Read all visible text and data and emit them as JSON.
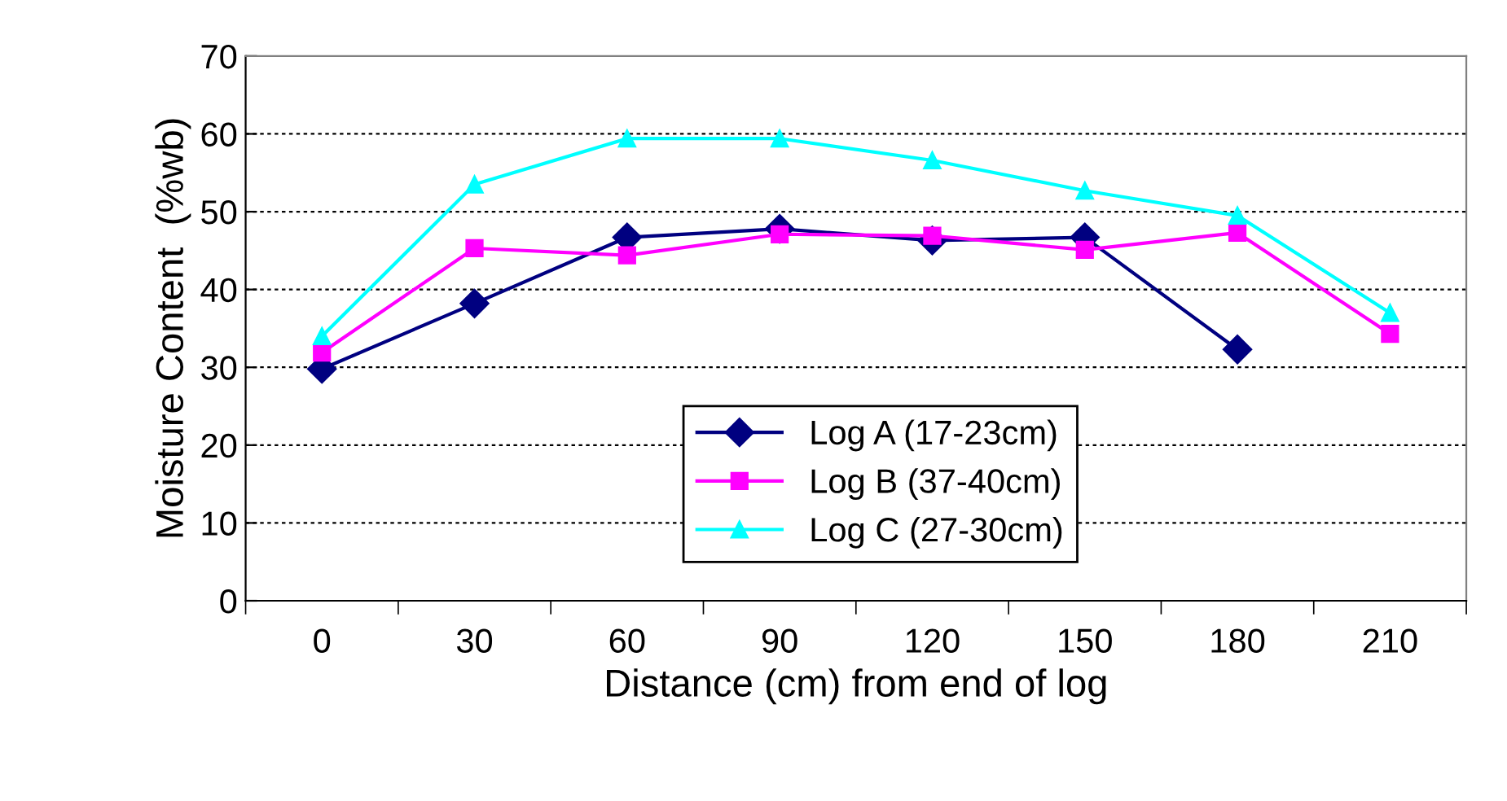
{
  "chart_data": {
    "type": "line",
    "xlabel": "Distance (cm) from end of log",
    "ylabel": "Moisture Content  (%wb)",
    "categories": [
      "0",
      "30",
      "60",
      "90",
      "120",
      "150",
      "180",
      "210"
    ],
    "series": [
      {
        "name": "Log A (17-23cm)",
        "color": "#000080",
        "marker": "diamond",
        "values": [
          29.8,
          38.2,
          46.7,
          47.8,
          46.3,
          46.7,
          32.3,
          null
        ]
      },
      {
        "name": "Log B (37-40cm)",
        "color": "#ff00ff",
        "marker": "square",
        "values": [
          31.9,
          45.3,
          44.4,
          47.1,
          46.9,
          45.1,
          47.3,
          34.3
        ]
      },
      {
        "name": "Log C (27-30cm)",
        "color": "#00ffff",
        "marker": "triangle",
        "values": [
          34,
          53.5,
          59.4,
          59.4,
          56.6,
          52.7,
          49.5,
          37
        ]
      }
    ],
    "ylim": [
      0,
      70
    ],
    "yticks": [
      0,
      10,
      20,
      30,
      40,
      50,
      60,
      70
    ],
    "grid": "y",
    "legend": "bottom",
    "line_style": "solid"
  }
}
